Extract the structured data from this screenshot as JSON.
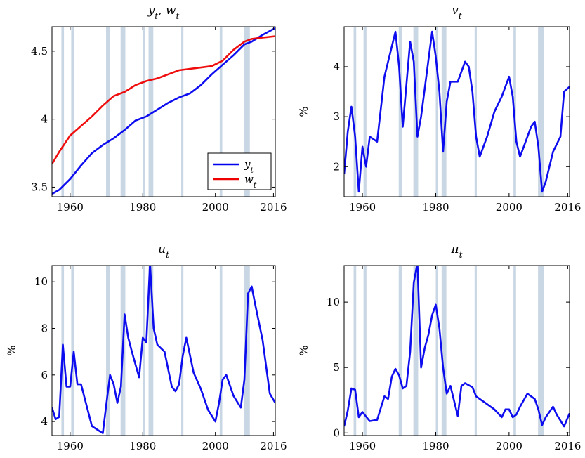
{
  "colors": {
    "recession": "#c9d6e3",
    "blue": "#0000ee",
    "red": "#ee0000"
  },
  "recessions": [
    [
      1957.6,
      1958.3
    ],
    [
      1960.3,
      1961.1
    ],
    [
      1969.9,
      1970.9
    ],
    [
      1973.9,
      1975.2
    ],
    [
      1980.0,
      1980.6
    ],
    [
      1981.6,
      1982.9
    ],
    [
      1990.6,
      1991.2
    ],
    [
      2001.2,
      2001.9
    ],
    [
      2007.9,
      2009.5
    ]
  ],
  "xticks": [
    "1960",
    "1980",
    "2000",
    "2016"
  ],
  "chart_data": [
    {
      "type": "line",
      "title": "y_t, w_t",
      "xlabel": "",
      "ylabel": "",
      "xlim": [
        1955,
        2016.5
      ],
      "ylim": [
        3.43,
        4.68
      ],
      "yticks": [
        "3.5",
        "4",
        "4.5"
      ],
      "legend": "bottom-right",
      "series": [
        {
          "name": "y_t",
          "color": "blue",
          "x": [
            1955,
            1957,
            1960,
            1963,
            1966,
            1969,
            1972,
            1975,
            1978,
            1981,
            1984,
            1987,
            1990,
            1993,
            1996,
            1999,
            2002,
            2005,
            2008,
            2010,
            2013,
            2016.5
          ],
          "y": [
            3.45,
            3.48,
            3.56,
            3.66,
            3.75,
            3.81,
            3.86,
            3.92,
            3.99,
            4.02,
            4.07,
            4.12,
            4.16,
            4.19,
            4.25,
            4.33,
            4.4,
            4.47,
            4.55,
            4.57,
            4.62,
            4.67
          ]
        },
        {
          "name": "w_t",
          "color": "red",
          "x": [
            1955,
            1957,
            1960,
            1963,
            1966,
            1969,
            1972,
            1975,
            1978,
            1981,
            1984,
            1987,
            1990,
            1993,
            1996,
            1999,
            2002,
            2005,
            2008,
            2010,
            2013,
            2016.5
          ],
          "y": [
            3.67,
            3.76,
            3.88,
            3.95,
            4.02,
            4.1,
            4.17,
            4.2,
            4.25,
            4.28,
            4.3,
            4.33,
            4.36,
            4.37,
            4.38,
            4.39,
            4.43,
            4.51,
            4.57,
            4.59,
            4.6,
            4.61
          ]
        }
      ]
    },
    {
      "type": "line",
      "title": "v_t",
      "xlabel": "",
      "ylabel": "%",
      "xlim": [
        1955,
        2016.5
      ],
      "ylim": [
        1.4,
        4.8
      ],
      "yticks": [
        "2",
        "3",
        "4"
      ],
      "series": [
        {
          "color": "blue",
          "x": [
            1955,
            1956,
            1957,
            1958,
            1959,
            1960,
            1961,
            1962,
            1964,
            1966,
            1967,
            1969,
            1970,
            1971,
            1973,
            1974,
            1975,
            1976,
            1979,
            1980,
            1981,
            1982,
            1983,
            1984,
            1986,
            1988,
            1989,
            1990,
            1991,
            1992,
            1994,
            1996,
            1998,
            2000,
            2001,
            2002,
            2003,
            2004,
            2006,
            2007,
            2008,
            2009,
            2010,
            2012,
            2014,
            2015,
            2016.5
          ],
          "y": [
            1.85,
            2.7,
            3.2,
            2.6,
            1.5,
            2.4,
            2.0,
            2.6,
            2.5,
            3.8,
            4.1,
            4.7,
            4.0,
            2.8,
            4.5,
            4.1,
            2.6,
            3.0,
            4.7,
            4.2,
            3.5,
            2.3,
            3.3,
            3.7,
            3.7,
            4.1,
            4.0,
            3.5,
            2.6,
            2.2,
            2.6,
            3.1,
            3.4,
            3.8,
            3.4,
            2.5,
            2.2,
            2.4,
            2.8,
            2.9,
            2.4,
            1.5,
            1.7,
            2.3,
            2.6,
            3.5,
            3.6
          ]
        }
      ]
    },
    {
      "type": "line",
      "title": "u_t",
      "xlabel": "",
      "ylabel": "%",
      "xlim": [
        1955,
        2016.5
      ],
      "ylim": [
        3.4,
        10.7
      ],
      "yticks": [
        "4",
        "6",
        "8",
        "10"
      ],
      "series": [
        {
          "color": "blue",
          "x": [
            1955,
            1956,
            1957,
            1958,
            1959,
            1960,
            1961,
            1962,
            1963,
            1966,
            1968,
            1969,
            1970,
            1971,
            1972,
            1973,
            1974,
            1975,
            1976,
            1977,
            1979,
            1980,
            1981,
            1982,
            1983,
            1984,
            1986,
            1988,
            1989,
            1990,
            1991,
            1992,
            1994,
            1996,
            1998,
            2000,
            2001,
            2002,
            2003,
            2005,
            2007,
            2008,
            2009,
            2010,
            2011,
            2013,
            2015,
            2016.5
          ],
          "y": [
            4.6,
            4.1,
            4.2,
            7.3,
            5.5,
            5.5,
            7.0,
            5.6,
            5.6,
            3.8,
            3.6,
            3.5,
            4.8,
            6.0,
            5.6,
            4.8,
            5.5,
            8.6,
            7.6,
            7.0,
            5.9,
            7.6,
            7.4,
            10.8,
            8.0,
            7.3,
            7.0,
            5.5,
            5.3,
            5.6,
            6.8,
            7.6,
            6.1,
            5.4,
            4.5,
            4.0,
            4.8,
            5.8,
            6.0,
            5.1,
            4.6,
            5.8,
            9.5,
            9.8,
            9.0,
            7.5,
            5.2,
            4.8
          ]
        }
      ]
    },
    {
      "type": "line",
      "title": "π_t",
      "xlabel": "",
      "ylabel": "%",
      "xlim": [
        1955,
        2016.5
      ],
      "ylim": [
        -0.2,
        12.8
      ],
      "yticks": [
        "0",
        "5",
        "10"
      ],
      "series": [
        {
          "color": "blue",
          "x": [
            1955,
            1956,
            1957,
            1958,
            1959,
            1960,
            1962,
            1964,
            1966,
            1967,
            1968,
            1969,
            1970,
            1971,
            1972,
            1973,
            1974,
            1975,
            1976,
            1977,
            1978,
            1979,
            1980,
            1981,
            1982,
            1983,
            1984,
            1986,
            1987,
            1988,
            1990,
            1991,
            1992,
            1994,
            1996,
            1998,
            1999,
            2000,
            2001,
            2002,
            2003,
            2005,
            2006,
            2007,
            2008,
            2009,
            2010,
            2012,
            2013,
            2015,
            2016.5
          ],
          "y": [
            0.5,
            1.7,
            3.4,
            3.3,
            1.2,
            1.6,
            0.9,
            1.0,
            2.8,
            2.6,
            4.3,
            4.9,
            4.4,
            3.4,
            3.6,
            6.2,
            11.5,
            13.0,
            5.0,
            6.5,
            7.5,
            9.0,
            9.8,
            8.0,
            5.0,
            3.0,
            3.6,
            1.3,
            3.6,
            3.8,
            3.5,
            2.8,
            2.6,
            2.2,
            1.8,
            1.2,
            1.8,
            1.8,
            1.2,
            1.4,
            2.0,
            3.0,
            2.8,
            2.6,
            1.8,
            0.6,
            1.2,
            2.0,
            1.4,
            0.5,
            1.5
          ]
        }
      ]
    }
  ]
}
